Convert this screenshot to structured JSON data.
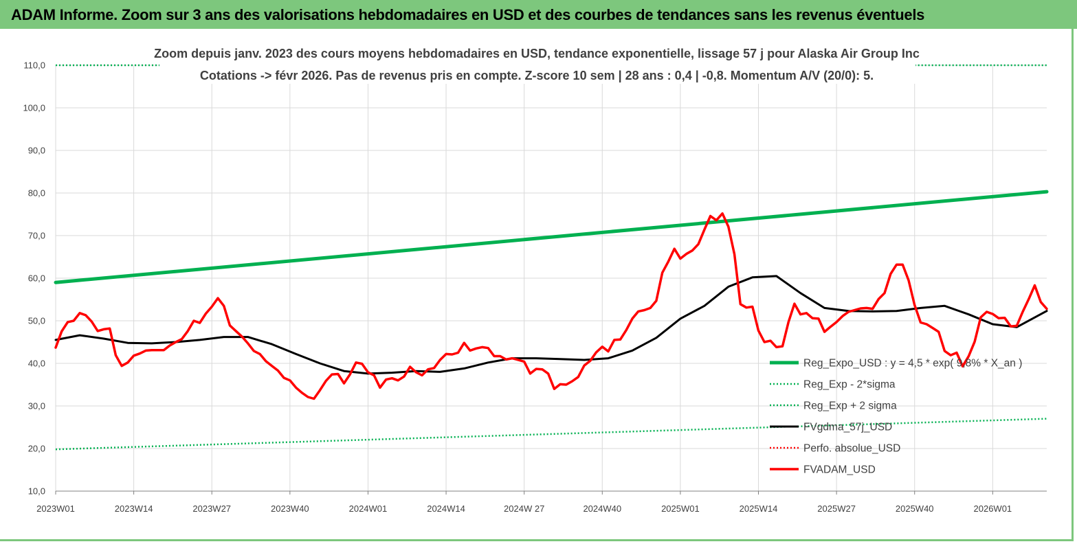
{
  "banner": {
    "title": "ADAM Informe. Zoom sur 3 ans des valorisations hebdomadaires en USD et des courbes de tendances sans les revenus éventuels"
  },
  "chart_data": {
    "type": "line",
    "title_line1": "Zoom depuis janv. 2023 des cours moyens hebdomadaires en USD, tendance exponentielle, lissage 57 j pour Alaska Air Group Inc",
    "title_line2": "Cotations -> févr 2026.  Pas de revenus pris en compte. Z-score 10 sem  | 28 ans : 0,4 | -0,8. Momentum A/V (20/0): 5.",
    "xlabel": "",
    "ylabel": "",
    "ylim": [
      10,
      110
    ],
    "yticks": [
      "10,0",
      "20,0",
      "30,0",
      "40,0",
      "50,0",
      "60,0",
      "70,0",
      "80,0",
      "90,0",
      "100,0",
      "110,0"
    ],
    "xticks": [
      "2023W01",
      "2023W14",
      "2023W27",
      "2023W40",
      "2024W01",
      "2024W14",
      "2024W 27",
      "2024W40",
      "2025W01",
      "2025W14",
      "2025W27",
      "2025W40",
      "2026W01"
    ],
    "x_range_weeks": [
      0,
      165
    ],
    "grid": true,
    "legend_position": "bottom-right",
    "colors": {
      "reg_expo": "#00b050",
      "sigma": "#00b050",
      "fvgdma": "#000000",
      "perfo": "#ff0000",
      "fvadam": "#ff0000"
    },
    "series": [
      {
        "name": "Reg_Expo_USD : y = 4,5 * exp( 9,8% *  X_an )",
        "key": "reg_expo",
        "x": [
          0,
          165
        ],
        "y": [
          59.0,
          80.3
        ]
      },
      {
        "name": "Reg_Exp - 2*sigma",
        "key": "minus2",
        "x": [
          0,
          165
        ],
        "y": [
          19.8,
          27.0
        ]
      },
      {
        "name": "Reg_Exp + 2 sigma",
        "key": "plus2",
        "x": [
          0,
          18,
          143,
          165
        ],
        "y": [
          110.0,
          110.0,
          110.0,
          110.0
        ]
      },
      {
        "name": "FVgdma_57j_USD",
        "key": "fvgdma",
        "x": [
          0,
          4,
          8,
          12,
          16,
          20,
          24,
          28,
          32,
          36,
          40,
          44,
          48,
          52,
          56,
          60,
          64,
          68,
          72,
          76,
          80,
          84,
          88,
          92,
          96,
          100,
          104,
          108,
          112,
          116,
          120,
          124,
          128,
          132,
          136,
          140,
          144,
          148,
          152,
          156,
          160,
          165
        ],
        "y": [
          45.5,
          46.6,
          45.8,
          44.8,
          44.7,
          45.0,
          45.5,
          46.2,
          46.2,
          44.5,
          42.2,
          40.0,
          38.2,
          37.6,
          37.8,
          38.2,
          38.0,
          38.8,
          40.2,
          41.2,
          41.2,
          41.0,
          40.8,
          41.2,
          43.0,
          46.0,
          50.5,
          53.5,
          58.0,
          60.2,
          60.5,
          56.5,
          53.0,
          52.3,
          52.2,
          52.3,
          53.0,
          53.5,
          51.5,
          49.2,
          48.5,
          52.3
        ]
      },
      {
        "name": "Perfo. absolue_USD",
        "key": "perfo",
        "x": [],
        "y": []
      },
      {
        "name": "FVADAM_USD",
        "key": "fvadam",
        "x": [
          0,
          1,
          2,
          3,
          4,
          5,
          6,
          7,
          8,
          9,
          10,
          11,
          12,
          13,
          14,
          15,
          16,
          17,
          18,
          19,
          20,
          21,
          22,
          23,
          24,
          25,
          26,
          27,
          28,
          29,
          30,
          31,
          32,
          33,
          34,
          35,
          36,
          37,
          38,
          39,
          40,
          41,
          42,
          43,
          44,
          45,
          46,
          47,
          48,
          49,
          50,
          51,
          52,
          53,
          54,
          55,
          56,
          57,
          58,
          59,
          60,
          61,
          62,
          63,
          64,
          65,
          66,
          67,
          68,
          69,
          70,
          71,
          72,
          73,
          74,
          75,
          76,
          77,
          78,
          79,
          80,
          81,
          82,
          83,
          84,
          85,
          86,
          87,
          88,
          89,
          90,
          91,
          92,
          93,
          94,
          95,
          96,
          97,
          98,
          99,
          100,
          101,
          102,
          103,
          104,
          105,
          106,
          107,
          108,
          109,
          110,
          111,
          112,
          113,
          114,
          115,
          116,
          117,
          118,
          119,
          120,
          121,
          122,
          123,
          124,
          125,
          126,
          127,
          128,
          129,
          130,
          131,
          132,
          133,
          134,
          135,
          136,
          137,
          138,
          139,
          140,
          141,
          142,
          143,
          144,
          145,
          146,
          147,
          148,
          149,
          150,
          151,
          152,
          153,
          154,
          155,
          156,
          157,
          158,
          159,
          160,
          161,
          162,
          163,
          164,
          165
        ],
        "y": [
          43.7,
          47.5,
          49.7,
          50.0,
          51.8,
          51.3,
          49.8,
          47.6,
          48.0,
          48.2,
          41.9,
          39.4,
          40.2,
          41.8,
          42.3,
          43.0,
          43.1,
          43.1,
          43.1,
          44.2,
          45.0,
          45.7,
          47.6,
          50.0,
          49.5,
          51.7,
          53.3,
          55.3,
          53.5,
          48.9,
          47.6,
          46.3,
          44.7,
          42.9,
          42.2,
          40.5,
          39.4,
          38.3,
          36.6,
          36.0,
          34.3,
          33.1,
          32.1,
          31.7,
          33.7,
          35.9,
          37.4,
          37.5,
          35.3,
          37.4,
          40.2,
          39.9,
          37.9,
          37.2,
          34.3,
          36.2,
          36.5,
          36.0,
          36.9,
          39.2,
          37.9,
          37.2,
          38.6,
          38.9,
          40.8,
          42.2,
          42.1,
          42.5,
          44.8,
          43.0,
          43.5,
          43.8,
          43.6,
          41.7,
          41.7,
          40.9,
          41.2,
          40.8,
          40.4,
          37.6,
          38.7,
          38.6,
          37.6,
          34.0,
          35.1,
          35.0,
          35.8,
          36.8,
          39.5,
          40.6,
          42.6,
          43.9,
          42.8,
          45.5,
          45.6,
          47.8,
          50.5,
          52.2,
          52.5,
          53.0,
          54.7,
          61.3,
          63.9,
          66.9,
          64.6,
          65.7,
          66.5,
          68.0,
          71.4,
          74.6,
          73.6,
          75.2,
          72.1,
          65.6,
          53.9,
          53.1,
          53.3,
          47.7,
          45.0,
          45.3,
          43.8,
          44.0,
          49.7,
          54.0,
          51.5,
          51.8,
          50.6,
          50.5,
          47.4,
          48.6,
          49.7,
          51.1,
          52.1,
          52.5,
          52.9,
          53.0,
          52.8,
          55.1,
          56.5,
          61.0,
          63.2,
          63.2,
          59.5,
          53.7,
          49.6,
          49.2,
          48.3,
          47.4,
          42.9,
          41.9,
          42.5,
          39.3,
          41.7,
          45.1,
          50.8,
          52.1,
          51.6,
          50.6,
          50.7,
          48.7,
          48.8,
          52.1,
          55.1,
          58.3,
          54.4,
          52.8
        ]
      }
    ]
  }
}
